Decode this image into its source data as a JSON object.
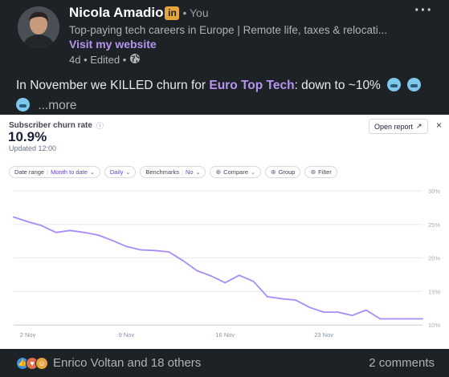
{
  "author": {
    "name": "Nicola Amadio",
    "degree": "• You",
    "headline": "Top-paying tech careers in Europe | Remote life, taxes & relocati...",
    "website_label": "Visit my website",
    "timestamp": "4d • Edited •"
  },
  "post": {
    "text_before": "In November we KILLED churn for ",
    "highlight": "Euro Top Tech",
    "text_after": ": down to ~10%",
    "see_more": "...more"
  },
  "chart_card": {
    "metric_title": "Subscriber churn rate",
    "metric_value": "10.9%",
    "updated": "Updated 12:00",
    "open_report_label": "Open report",
    "close_label": "×",
    "filters": [
      {
        "label": "Date range",
        "value": "Month to date"
      },
      {
        "label": "Daily",
        "value": ""
      },
      {
        "label": "Benchmarks",
        "value": "No"
      },
      {
        "label": "Compare",
        "value": ""
      },
      {
        "label": "Group",
        "value": ""
      },
      {
        "label": "Filter",
        "value": ""
      }
    ]
  },
  "chart_data": {
    "type": "line",
    "title": "Subscriber churn rate",
    "x_tick_labels": [
      "2 Nov",
      "9 Nov",
      "16 Nov",
      "23 Nov"
    ],
    "x_tick_days": [
      2,
      9,
      16,
      23
    ],
    "xlim": [
      1,
      30
    ],
    "y_tick_labels": [
      "30%",
      "25%",
      "20%",
      "15%",
      "10%"
    ],
    "ylim": [
      10,
      30
    ],
    "grid": true,
    "series": [
      {
        "color": "#a78bfa",
        "x": [
          1,
          2,
          3,
          4,
          5,
          6,
          7,
          8,
          9,
          10,
          11,
          12,
          13,
          14,
          15,
          16,
          17,
          18,
          19,
          20,
          21,
          22,
          23,
          24,
          25,
          26,
          27,
          28,
          29,
          30
        ],
        "y": [
          26.1,
          25.4,
          24.8,
          23.8,
          24.1,
          23.8,
          23.4,
          22.6,
          21.7,
          21.2,
          21.1,
          20.9,
          19.6,
          18.1,
          17.3,
          16.3,
          17.4,
          16.5,
          14.2,
          13.9,
          13.7,
          12.6,
          11.9,
          11.9,
          11.4,
          12.2,
          10.9,
          10.9,
          10.9,
          10.9
        ]
      }
    ]
  },
  "footer": {
    "reactions_label": "Enrico Voltan and 18 others",
    "comments_label": "2 comments"
  },
  "colors": {
    "background": "#1d2226",
    "accent": "#b694f0",
    "line": "#a78bfa"
  }
}
